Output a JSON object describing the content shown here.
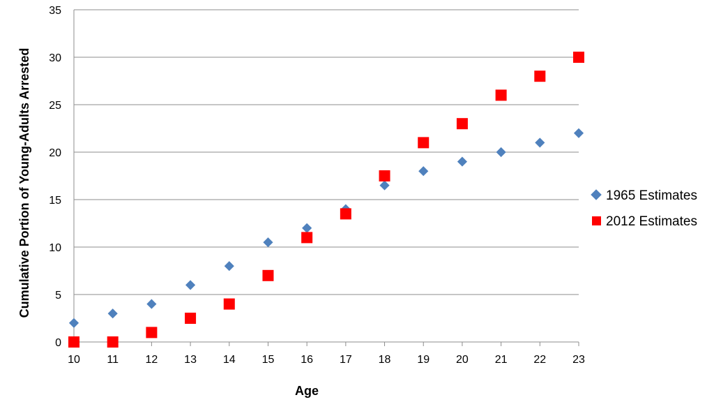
{
  "chart_data": {
    "type": "scatter",
    "title": "",
    "xlabel": "Age",
    "ylabel": "Cumulative Portion of Young-Adults Arrested",
    "x": [
      10,
      11,
      12,
      13,
      14,
      15,
      16,
      17,
      18,
      19,
      20,
      21,
      22,
      23
    ],
    "xlim": [
      10,
      23
    ],
    "ylim": [
      0,
      35
    ],
    "xticks": [
      10,
      11,
      12,
      13,
      14,
      15,
      16,
      17,
      18,
      19,
      20,
      21,
      22,
      23
    ],
    "yticks": [
      0,
      5,
      10,
      15,
      20,
      25,
      30,
      35
    ],
    "grid": "horizontal",
    "legend_position": "right",
    "series": [
      {
        "name": "1965 Estimates",
        "marker": "diamond",
        "color": "#4F81BD",
        "values": [
          2,
          3,
          4,
          6,
          8,
          10.5,
          12,
          14,
          16.5,
          18,
          19,
          20,
          21,
          22
        ]
      },
      {
        "name": "2012 Estimates",
        "marker": "square",
        "color": "#FF0000",
        "values": [
          0,
          0,
          1,
          2.5,
          4,
          7,
          11,
          13.5,
          17.5,
          21,
          23,
          26,
          28,
          30
        ]
      }
    ]
  }
}
